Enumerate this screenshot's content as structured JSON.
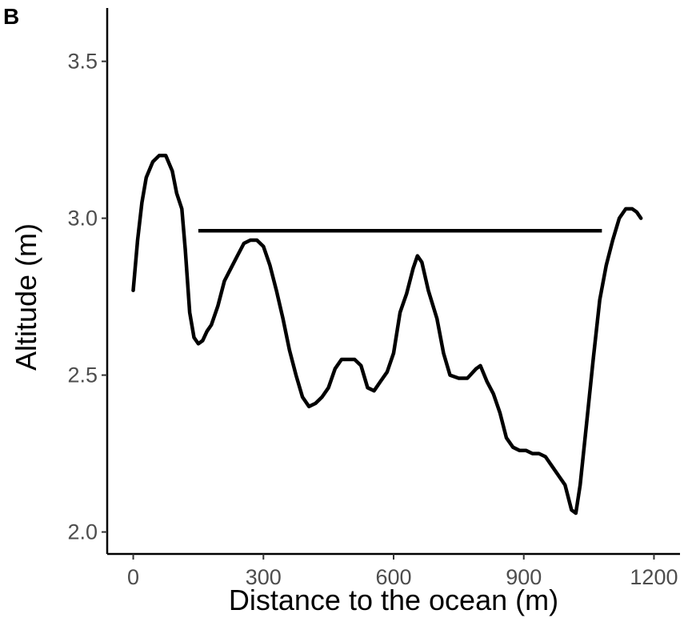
{
  "panel_label": "B",
  "chart_data": {
    "type": "line",
    "xlabel": "Distance to the ocean (m)",
    "ylabel": "Altitude (m)",
    "xlim": [
      -60,
      1260
    ],
    "ylim": [
      1.93,
      3.67
    ],
    "x_ticks": [
      0,
      300,
      600,
      900,
      1200
    ],
    "x_tick_labels": [
      "0",
      "300",
      "600",
      "900",
      "1200"
    ],
    "y_ticks": [
      2.0,
      2.5,
      3.0,
      3.5
    ],
    "y_tick_labels": [
      "2.0",
      "2.5",
      "3.0",
      "3.5"
    ],
    "grid": false,
    "legend": "none",
    "series": [
      {
        "points": [
          [
            0,
            2.77
          ],
          [
            10,
            2.93
          ],
          [
            20,
            3.05
          ],
          [
            30,
            3.13
          ],
          [
            45,
            3.18
          ],
          [
            60,
            3.2
          ],
          [
            75,
            3.2
          ],
          [
            90,
            3.15
          ],
          [
            100,
            3.08
          ],
          [
            112,
            3.03
          ],
          [
            120,
            2.9
          ],
          [
            130,
            2.7
          ],
          [
            140,
            2.62
          ],
          [
            150,
            2.6
          ],
          [
            160,
            2.61
          ],
          [
            170,
            2.64
          ],
          [
            180,
            2.66
          ],
          [
            195,
            2.72
          ],
          [
            210,
            2.8
          ],
          [
            225,
            2.84
          ],
          [
            240,
            2.88
          ],
          [
            255,
            2.92
          ],
          [
            270,
            2.93
          ],
          [
            285,
            2.93
          ],
          [
            300,
            2.91
          ],
          [
            315,
            2.85
          ],
          [
            330,
            2.77
          ],
          [
            345,
            2.68
          ],
          [
            360,
            2.58
          ],
          [
            375,
            2.5
          ],
          [
            390,
            2.43
          ],
          [
            405,
            2.4
          ],
          [
            420,
            2.41
          ],
          [
            435,
            2.43
          ],
          [
            450,
            2.46
          ],
          [
            465,
            2.52
          ],
          [
            480,
            2.55
          ],
          [
            495,
            2.55
          ],
          [
            510,
            2.55
          ],
          [
            525,
            2.53
          ],
          [
            540,
            2.46
          ],
          [
            555,
            2.45
          ],
          [
            570,
            2.48
          ],
          [
            585,
            2.51
          ],
          [
            600,
            2.57
          ],
          [
            615,
            2.7
          ],
          [
            630,
            2.76
          ],
          [
            645,
            2.84
          ],
          [
            655,
            2.88
          ],
          [
            665,
            2.86
          ],
          [
            680,
            2.77
          ],
          [
            700,
            2.68
          ],
          [
            715,
            2.57
          ],
          [
            730,
            2.5
          ],
          [
            750,
            2.49
          ],
          [
            770,
            2.49
          ],
          [
            790,
            2.52
          ],
          [
            800,
            2.53
          ],
          [
            815,
            2.48
          ],
          [
            830,
            2.44
          ],
          [
            845,
            2.38
          ],
          [
            860,
            2.3
          ],
          [
            875,
            2.27
          ],
          [
            890,
            2.26
          ],
          [
            905,
            2.26
          ],
          [
            920,
            2.25
          ],
          [
            935,
            2.25
          ],
          [
            950,
            2.24
          ],
          [
            965,
            2.21
          ],
          [
            980,
            2.18
          ],
          [
            995,
            2.15
          ],
          [
            1010,
            2.07
          ],
          [
            1020,
            2.06
          ],
          [
            1030,
            2.15
          ],
          [
            1045,
            2.35
          ],
          [
            1060,
            2.55
          ],
          [
            1075,
            2.74
          ],
          [
            1090,
            2.85
          ],
          [
            1105,
            2.93
          ],
          [
            1120,
            3.0
          ],
          [
            1135,
            3.03
          ],
          [
            1150,
            3.03
          ],
          [
            1160,
            3.02
          ],
          [
            1170,
            3.0
          ]
        ]
      }
    ],
    "reference_segment": {
      "x_start": 150,
      "x_end": 1080,
      "y": 2.96
    }
  }
}
